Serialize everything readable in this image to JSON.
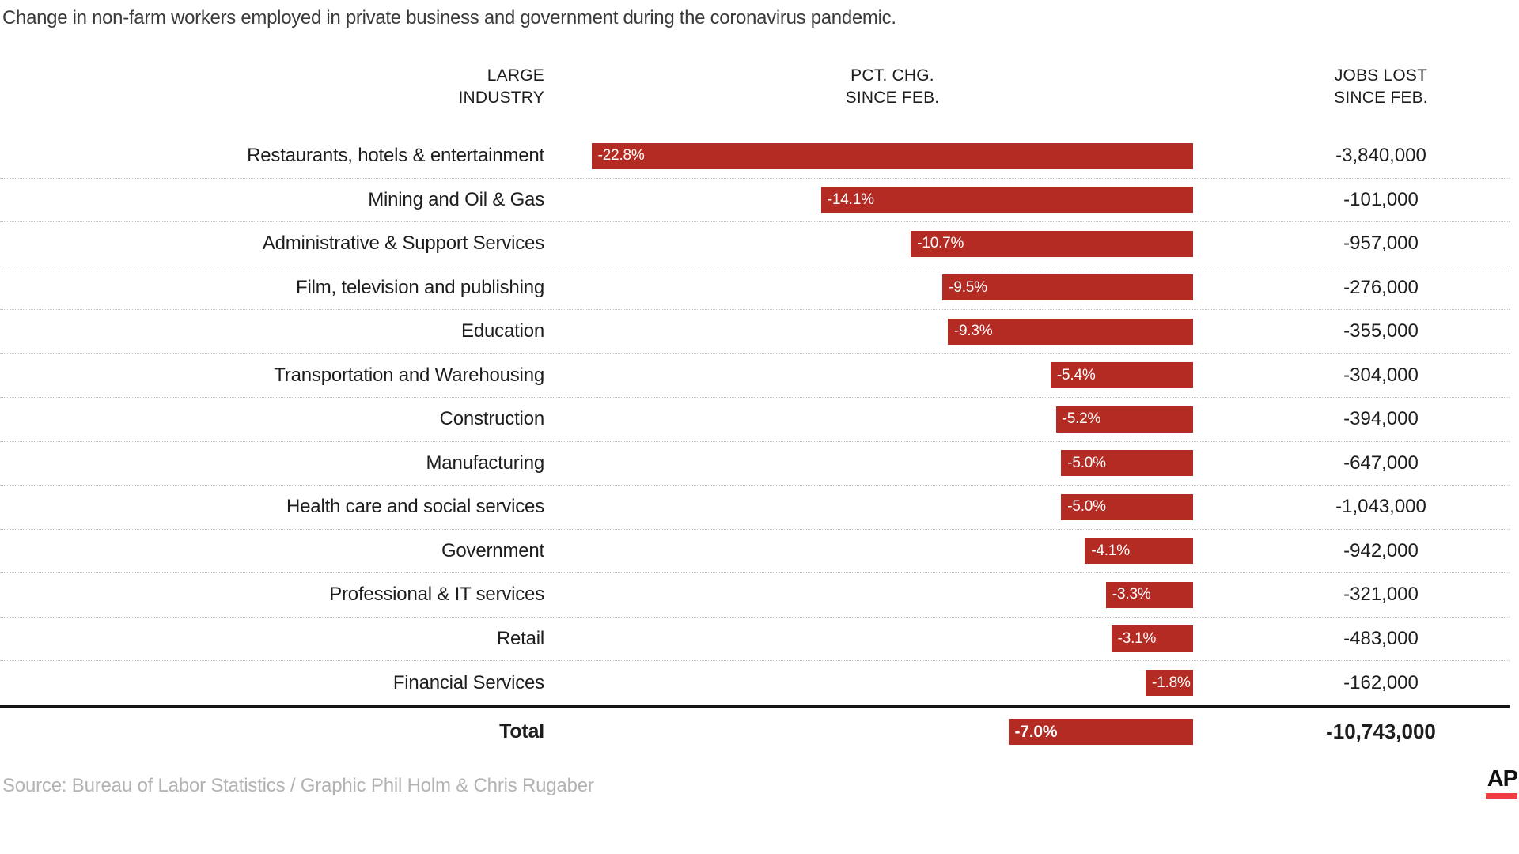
{
  "subtitle": "Change in non-farm workers employed in private business and government during the coronavirus pandemic.",
  "headers": {
    "industry": {
      "line1": "LARGE",
      "line2": "INDUSTRY"
    },
    "pct": {
      "line1": "PCT. CHG.",
      "line2": "SINCE FEB."
    },
    "jobs": {
      "line1": "JOBS LOST",
      "line2": "SINCE FEB."
    }
  },
  "chart_data": {
    "type": "bar",
    "orientation": "horizontal",
    "title": "Change in non-farm workers employed in private business and government during the coronavirus pandemic.",
    "columns": [
      "LARGE INDUSTRY",
      "PCT. CHG. SINCE FEB.",
      "JOBS LOST SINCE FEB."
    ],
    "xlim": [
      -23.5,
      0
    ],
    "value_unit": "percent",
    "rows": [
      {
        "industry": "Restaurants, hotels & entertainment",
        "pct_chg": -22.8,
        "pct_label": "-22.8%",
        "jobs_lost": "-3,840,000"
      },
      {
        "industry": "Mining and Oil & Gas",
        "pct_chg": -14.1,
        "pct_label": "-14.1%",
        "jobs_lost": "-101,000"
      },
      {
        "industry": "Administrative & Support Services",
        "pct_chg": -10.7,
        "pct_label": "-10.7%",
        "jobs_lost": "-957,000"
      },
      {
        "industry": "Film, television and publishing",
        "pct_chg": -9.5,
        "pct_label": "-9.5%",
        "jobs_lost": "-276,000"
      },
      {
        "industry": "Education",
        "pct_chg": -9.3,
        "pct_label": "-9.3%",
        "jobs_lost": "-355,000"
      },
      {
        "industry": "Transportation and Warehousing",
        "pct_chg": -5.4,
        "pct_label": "-5.4%",
        "jobs_lost": "-304,000"
      },
      {
        "industry": "Construction",
        "pct_chg": -5.2,
        "pct_label": "-5.2%",
        "jobs_lost": "-394,000"
      },
      {
        "industry": "Manufacturing",
        "pct_chg": -5.0,
        "pct_label": "-5.0%",
        "jobs_lost": "-647,000"
      },
      {
        "industry": "Health care and social services",
        "pct_chg": -5.0,
        "pct_label": "-5.0%",
        "jobs_lost": "-1,043,000"
      },
      {
        "industry": "Government",
        "pct_chg": -4.1,
        "pct_label": "-4.1%",
        "jobs_lost": "-942,000"
      },
      {
        "industry": "Professional & IT services",
        "pct_chg": -3.3,
        "pct_label": "-3.3%",
        "jobs_lost": "-321,000"
      },
      {
        "industry": "Retail",
        "pct_chg": -3.1,
        "pct_label": "-3.1%",
        "jobs_lost": "-483,000"
      },
      {
        "industry": "Financial Services",
        "pct_chg": -1.8,
        "pct_label": "-1.8%",
        "jobs_lost": "-162,000"
      }
    ],
    "total": {
      "industry": "Total",
      "pct_chg": -7.0,
      "pct_label": "-7.0%",
      "jobs_lost": "-10,743,000"
    }
  },
  "colors": {
    "bar": "#b32b23",
    "bar_label": "#ffffff",
    "text": "#1d1d1d",
    "subtitle": "#3b3b3b",
    "source": "#b3b3b3",
    "separator": "#c4c4c4",
    "total_rule": "#141414",
    "ap_red": "#ef3e42"
  },
  "footer": {
    "source": "Source: Bureau of Labor Statistics / Graphic Phil Holm & Chris Rugaber",
    "logo_text": "AP"
  }
}
